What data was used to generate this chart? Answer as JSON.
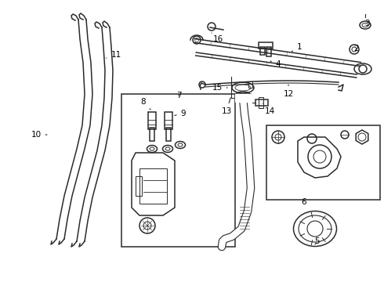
{
  "background_color": "#ffffff",
  "line_color": "#2a2a2a",
  "label_color": "#000000",
  "label_fontsize": 7.5,
  "fig_width": 4.9,
  "fig_height": 3.6,
  "dpi": 100
}
